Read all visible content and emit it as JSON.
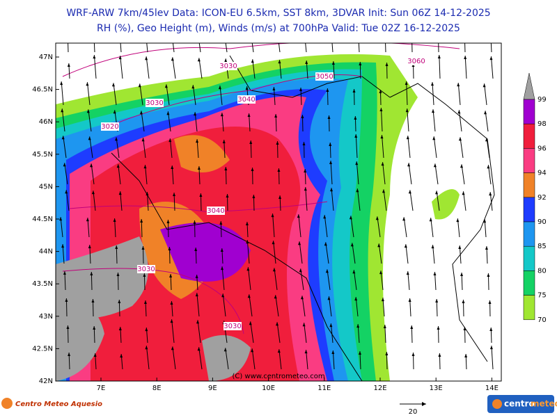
{
  "header": {
    "line1": "WRF-ARW 7km/45lev   Data: ICON-EU 6.5km, SST 8km, 3DVAR   Init: Sun 06Z 14-12-2025",
    "line2": "RH (%), Geo Height (m), Winds (m/s) at 700hPa   Valid: Tue 02Z 16-12-2025"
  },
  "map": {
    "lat_labels": [
      "47N",
      "46.5N",
      "46N",
      "45.5N",
      "45N",
      "44.5N",
      "44N",
      "43.5N",
      "43N",
      "42.5N",
      "42N"
    ],
    "lon_labels": [
      "7E",
      "8E",
      "9E",
      "10E",
      "11E",
      "12E",
      "13E",
      "14E"
    ],
    "contour_labels": [
      "3030",
      "3050",
      "3060",
      "3040",
      "3030",
      "3020",
      "3040",
      "3030",
      "3030"
    ],
    "watermark": "(C) www.centrometeo.com"
  },
  "colorbar": {
    "levels": [
      "99",
      "98",
      "96",
      "94",
      "92",
      "90",
      "85",
      "80",
      "75",
      "70"
    ],
    "colors": [
      "#a0a0a0",
      "#a000d0",
      "#f01e3c",
      "#fa3c82",
      "#f08228",
      "#1e3cff",
      "#1e96f0",
      "#14c8c8",
      "#14d264",
      "#a0e632"
    ]
  },
  "wind_scale": "20",
  "logo_left": "Centro Meteo Aquesio",
  "logo_right": {
    "part1": "centro",
    "part2": "meteo"
  }
}
